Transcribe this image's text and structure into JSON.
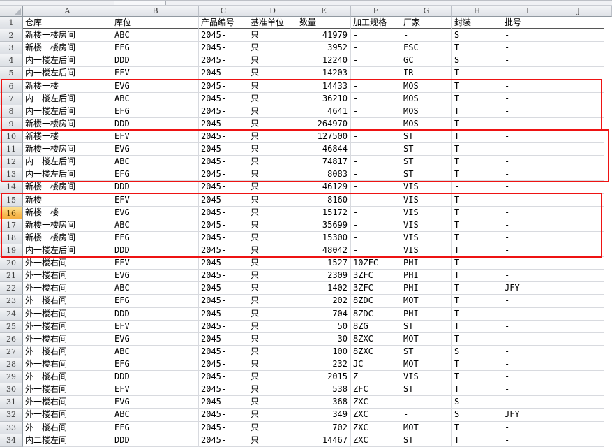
{
  "columns": [
    "A",
    "B",
    "C",
    "D",
    "E",
    "F",
    "G",
    "H",
    "I",
    "J",
    ""
  ],
  "sheet": {
    "rows": [
      [
        "仓库",
        "库位",
        "产品编号",
        "基准单位",
        "数量",
        "加工规格",
        "厂家",
        "封装",
        "批号",
        ""
      ],
      [
        "新楼一楼房间",
        "ABC",
        "2045-",
        "只",
        "41979",
        "-",
        "-",
        "S",
        "-",
        ""
      ],
      [
        "新楼一楼房间",
        "EFG",
        "2045-",
        "只",
        "3952",
        "-",
        "FSC",
        "T",
        "-",
        ""
      ],
      [
        "内一楼左后间",
        "DDD",
        "2045-",
        "只",
        "12240",
        "-",
        "GC",
        "S",
        "-",
        ""
      ],
      [
        "内一楼左后间",
        "EFV",
        "2045-",
        "只",
        "14203",
        "-",
        "IR",
        "T",
        "-",
        ""
      ],
      [
        "新楼一楼",
        "EVG",
        "2045-",
        "只",
        "14433",
        "-",
        "MOS",
        "T",
        "-",
        ""
      ],
      [
        "内一楼左后间",
        "ABC",
        "2045-",
        "只",
        "36210",
        "-",
        "MOS",
        "T",
        "-",
        ""
      ],
      [
        "内一楼左后间",
        "EFG",
        "2045-",
        "只",
        "4641",
        "-",
        "MOS",
        "T",
        "-",
        ""
      ],
      [
        "新楼一楼房间",
        "DDD",
        "2045-",
        "只",
        "264970",
        "-",
        "MOS",
        "T",
        "-",
        ""
      ],
      [
        "新楼一楼",
        "EFV",
        "2045-",
        "只",
        "127500",
        "-",
        "ST",
        "T",
        "-",
        ""
      ],
      [
        "新楼一楼房间",
        "EVG",
        "2045-",
        "只",
        "46844",
        "-",
        "ST",
        "T",
        "-",
        ""
      ],
      [
        "内一楼左后间",
        "ABC",
        "2045-",
        "只",
        "74817",
        "-",
        "ST",
        "T",
        "-",
        ""
      ],
      [
        "内一楼左后间",
        "EFG",
        "2045-",
        "只",
        "8083",
        "-",
        "ST",
        "T",
        "-",
        ""
      ],
      [
        "新楼一楼房间",
        "DDD",
        "2045-",
        "只",
        "46129",
        "-",
        "VIS",
        "-",
        "-",
        ""
      ],
      [
        "新楼",
        "EFV",
        "2045-",
        "只",
        "8160",
        "-",
        "VIS",
        "T",
        "-",
        ""
      ],
      [
        "新楼一楼",
        "EVG",
        "2045-",
        "只",
        "15172",
        "-",
        "VIS",
        "T",
        "-",
        ""
      ],
      [
        "新楼一楼房间",
        "ABC",
        "2045-",
        "只",
        "35699",
        "-",
        "VIS",
        "T",
        "-",
        ""
      ],
      [
        "新楼一楼房间",
        "EFG",
        "2045-",
        "只",
        "15300",
        "-",
        "VIS",
        "T",
        "-",
        ""
      ],
      [
        "内一楼左后间",
        "DDD",
        "2045-",
        "只",
        "48042",
        "-",
        "VIS",
        "T",
        "-",
        ""
      ],
      [
        "外一楼右间",
        "EFV",
        "2045-",
        "只",
        "1527",
        "10ZFC",
        "PHI",
        "T",
        "-",
        ""
      ],
      [
        "外一楼右间",
        "EVG",
        "2045-",
        "只",
        "2309",
        "3ZFC",
        "PHI",
        "T",
        "-",
        ""
      ],
      [
        "外一楼右间",
        "ABC",
        "2045-",
        "只",
        "1402",
        "3ZFC",
        "PHI",
        "T",
        "JFY",
        ""
      ],
      [
        "外一楼右间",
        "EFG",
        "2045-",
        "只",
        "202",
        "8ZDC",
        "MOT",
        "T",
        "-",
        ""
      ],
      [
        "外一楼右间",
        "DDD",
        "2045-",
        "只",
        "704",
        "8ZDC",
        "PHI",
        "T",
        "-",
        ""
      ],
      [
        "外一楼右间",
        "EFV",
        "2045-",
        "只",
        "50",
        "8ZG",
        "ST",
        "T",
        "-",
        ""
      ],
      [
        "外一楼右间",
        "EVG",
        "2045-",
        "只",
        "30",
        "8ZXC",
        "MOT",
        "T",
        "-",
        ""
      ],
      [
        "外一楼右间",
        "ABC",
        "2045-",
        "只",
        "100",
        "8ZXC",
        "ST",
        "S",
        "-",
        ""
      ],
      [
        "外一楼右间",
        "EFG",
        "2045-",
        "只",
        "232",
        "JC",
        "MOT",
        "T",
        "-",
        ""
      ],
      [
        "外一楼右间",
        "DDD",
        "2045-",
        "只",
        "2015",
        "Z",
        "VIS",
        "T",
        "-",
        ""
      ],
      [
        "外一楼右间",
        "EFV",
        "2045-",
        "只",
        "538",
        "ZFC",
        "ST",
        "T",
        "-",
        ""
      ],
      [
        "外一楼右间",
        "EVG",
        "2045-",
        "只",
        "368",
        "ZXC",
        "-",
        "S",
        "-",
        ""
      ],
      [
        "外一楼右间",
        "ABC",
        "2045-",
        "只",
        "349",
        "ZXC",
        "-",
        "S",
        "JFY",
        ""
      ],
      [
        "外一楼右间",
        "EFG",
        "2045-",
        "只",
        "702",
        "ZXC",
        "MOT",
        "T",
        "-",
        ""
      ],
      [
        "内二楼左间",
        "DDD",
        "2045-",
        "只",
        "14467",
        "ZXC",
        "ST",
        "T",
        "-",
        ""
      ]
    ]
  },
  "selection": {
    "highlighted_row_header": "16"
  },
  "annotations": {
    "red_boxes": [
      {
        "first_row": 6,
        "last_row": 9
      },
      {
        "first_row": 10,
        "last_row": 13
      },
      {
        "first_row": 15,
        "last_row": 19
      }
    ],
    "box_color": "#EE1313"
  },
  "colors": {
    "grid_line": "#D8DADF",
    "header_border": "#9199A1",
    "selected_header_fill": "#F8BC55",
    "row1_underline": "#565656"
  }
}
